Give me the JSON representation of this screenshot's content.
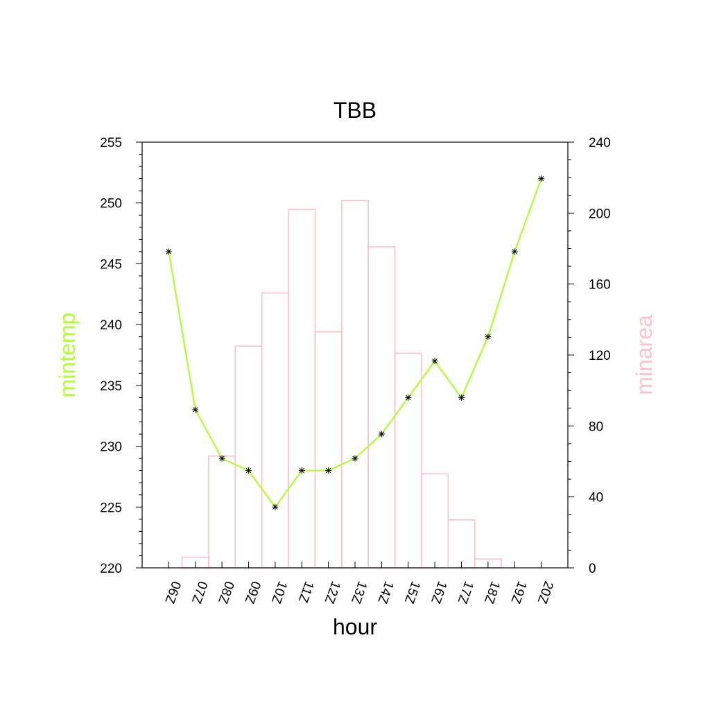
{
  "chart_data": {
    "type": "bar",
    "title": "TBB",
    "xlabel": "hour",
    "categories": [
      "06Z",
      "07Z",
      "08Z",
      "09Z",
      "10Z",
      "11Z",
      "12Z",
      "13Z",
      "14Z",
      "15Z",
      "16Z",
      "17Z",
      "18Z",
      "19Z",
      "20Z"
    ],
    "left_axis": {
      "label": "mintemp",
      "color": "#adff2f",
      "ylim": [
        220,
        255
      ],
      "ticks": [
        "220",
        "225",
        "230",
        "235",
        "240",
        "245",
        "250",
        "255"
      ]
    },
    "right_axis": {
      "label": "minarea",
      "color": "#ffc0cb",
      "ylim": [
        0,
        240
      ],
      "ticks": [
        "0",
        "40",
        "80",
        "120",
        "160",
        "200",
        "240"
      ]
    },
    "series": [
      {
        "name": "minarea",
        "type": "bar",
        "axis": "right",
        "color": "#ffc0cb",
        "values": [
          0,
          6,
          63,
          125,
          155,
          202,
          133,
          207,
          181,
          121,
          53,
          27,
          5,
          0,
          0
        ]
      },
      {
        "name": "mintemp",
        "type": "line",
        "axis": "left",
        "color": "#adff2f",
        "marker": "asterisk",
        "values": [
          246,
          233,
          229,
          228,
          225,
          228,
          228,
          229,
          231,
          234,
          237,
          234,
          239,
          246,
          252
        ]
      }
    ],
    "grid": false,
    "legend": "none"
  }
}
